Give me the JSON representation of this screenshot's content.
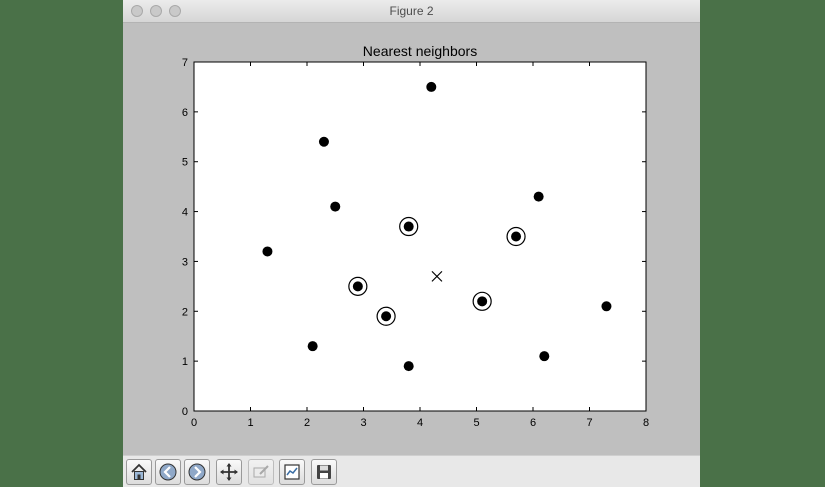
{
  "window": {
    "title": "Figure 2"
  },
  "toolbar": {
    "buttons": [
      {
        "icon": "home-icon",
        "name": "home-button"
      },
      {
        "icon": "back-arrow-icon",
        "name": "back-button"
      },
      {
        "icon": "forward-arrow-icon",
        "name": "forward-button"
      },
      {
        "icon": "pan-move-icon",
        "name": "pan-button"
      },
      {
        "icon": "zoom-rect-icon",
        "name": "zoom-button"
      },
      {
        "icon": "configure-subplots-icon",
        "name": "configure-subplots-button"
      },
      {
        "icon": "save-disk-icon",
        "name": "save-button"
      }
    ]
  },
  "chart_data": {
    "type": "scatter",
    "title": "Nearest neighbors",
    "xlabel": "",
    "ylabel": "",
    "xlim": [
      0,
      8
    ],
    "ylim": [
      0,
      7
    ],
    "xticks": [
      0,
      1,
      2,
      3,
      4,
      5,
      6,
      7,
      8
    ],
    "yticks": [
      0,
      1,
      2,
      3,
      4,
      5,
      6,
      7
    ],
    "grid": false,
    "points": [
      {
        "x": 2.1,
        "y": 1.3
      },
      {
        "x": 2.3,
        "y": 5.4
      },
      {
        "x": 4.2,
        "y": 6.5
      },
      {
        "x": 6.1,
        "y": 4.3
      },
      {
        "x": 2.5,
        "y": 4.1
      },
      {
        "x": 1.3,
        "y": 3.2
      },
      {
        "x": 7.3,
        "y": 2.1
      },
      {
        "x": 6.2,
        "y": 1.1
      },
      {
        "x": 3.8,
        "y": 0.9
      },
      {
        "x": 3.8,
        "y": 3.7
      },
      {
        "x": 5.7,
        "y": 3.5
      },
      {
        "x": 2.9,
        "y": 2.5
      },
      {
        "x": 3.4,
        "y": 1.9
      },
      {
        "x": 5.1,
        "y": 2.2
      }
    ],
    "neighbors": [
      {
        "x": 3.8,
        "y": 3.7
      },
      {
        "x": 5.7,
        "y": 3.5
      },
      {
        "x": 2.9,
        "y": 2.5
      },
      {
        "x": 3.4,
        "y": 1.9
      },
      {
        "x": 5.1,
        "y": 2.2
      }
    ],
    "query_point": {
      "x": 4.3,
      "y": 2.7
    },
    "colors": {
      "points": "#000000",
      "neighbor_ring": "#000000",
      "query_marker": "#000000"
    }
  }
}
